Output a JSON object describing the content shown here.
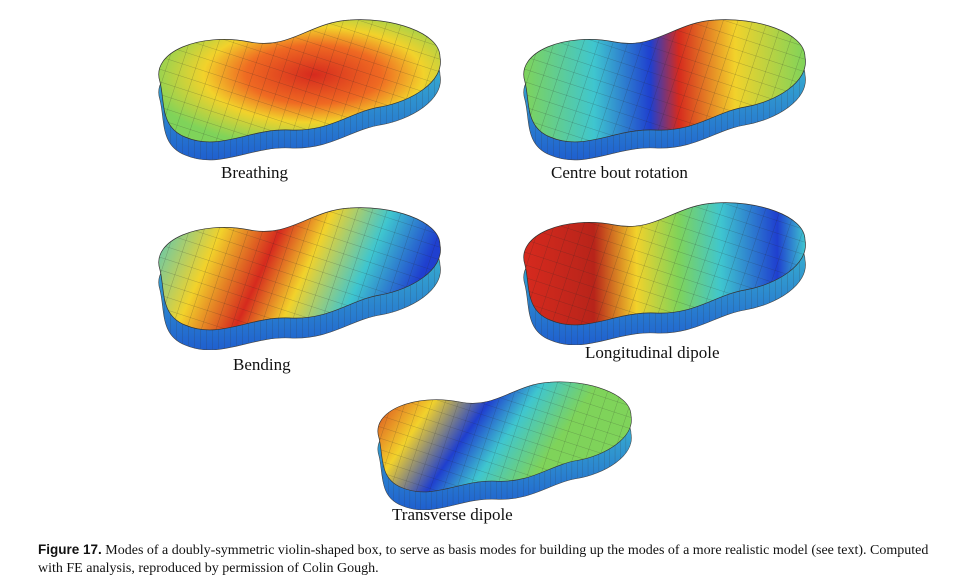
{
  "figure": {
    "panels": [
      {
        "id": "breathing",
        "label": "Breathing"
      },
      {
        "id": "centre-bout-rotation",
        "label": "Centre bout rotation"
      },
      {
        "id": "bending",
        "label": "Bending"
      },
      {
        "id": "longitudinal-dipole",
        "label": "Longitudinal dipole"
      },
      {
        "id": "transverse-dipole",
        "label": "Transverse dipole"
      }
    ],
    "caption": {
      "number": "Figure 17.",
      "text": "Modes of a doubly-symmetric violin-shaped box, to serve as basis modes for building up the modes of a more realistic model (see text).  Computed with FE analysis, reproduced by permission of Colin Gough."
    },
    "colors": {
      "hot": "#d62a1e",
      "warm": "#f2d22b",
      "mid": "#7fd35a",
      "cool": "#3fc6cf",
      "cold": "#1f3fcf"
    }
  }
}
